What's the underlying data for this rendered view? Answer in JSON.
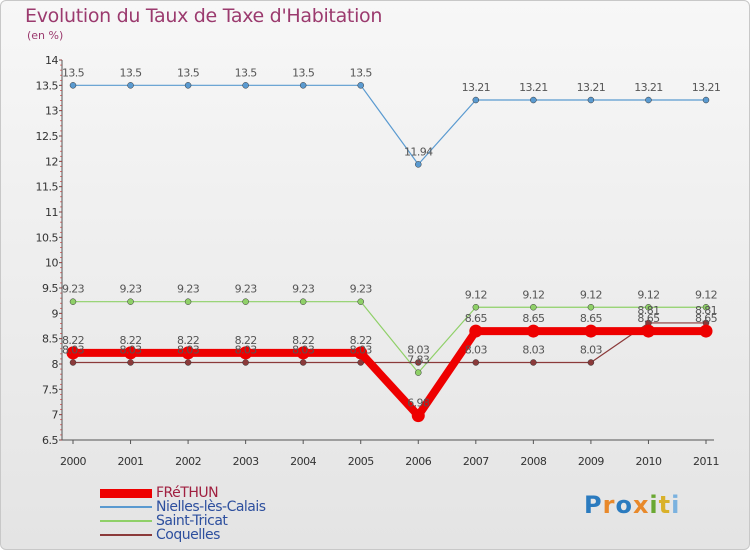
{
  "title": "Evolution du Taux de Taxe d'Habitation",
  "subtitle": "(en %)",
  "logo": {
    "text": "Proxiti",
    "letter_colors": [
      "#2b7bbf",
      "#e8892b",
      "#2b7bbf",
      "#e8892b",
      "#6aa832",
      "#d9b12a",
      "#7bb2df"
    ]
  },
  "chart_data": {
    "type": "line",
    "title": "Evolution du Taux de Taxe d'Habitation",
    "subtitle": "(en %)",
    "x": [
      "2000",
      "2001",
      "2002",
      "2003",
      "2004",
      "2005",
      "2006",
      "2007",
      "2008",
      "2009",
      "2010",
      "2011"
    ],
    "ylim": [
      6.5,
      14
    ],
    "yticks": [
      "6.5",
      "7",
      "7.5",
      "8",
      "8.5",
      "9",
      "9.5",
      "10",
      "10.5",
      "11",
      "11.5",
      "12",
      "12.5",
      "13",
      "13.5",
      "14"
    ],
    "grid": false,
    "legend_position": "bottom-left",
    "series": [
      {
        "name": "FRéTHUN",
        "color": "#ee0000",
        "emphasis": true,
        "values": [
          8.22,
          8.22,
          8.22,
          8.22,
          8.22,
          8.22,
          6.98,
          8.65,
          8.65,
          8.65,
          8.65,
          8.65
        ],
        "labels": [
          "8.22",
          "8.22",
          "8.22",
          "8.22",
          "8.22",
          "8.22",
          "6.98",
          "8.65",
          "8.65",
          "8.65",
          "8.65",
          "8.65"
        ]
      },
      {
        "name": "Nielles-lès-Calais",
        "color": "#5a9ad0",
        "values": [
          13.5,
          13.5,
          13.5,
          13.5,
          13.5,
          13.5,
          11.94,
          13.21,
          13.21,
          13.21,
          13.21,
          13.21
        ],
        "labels": [
          "13.5",
          "13.5",
          "13.5",
          "13.5",
          "13.5",
          "13.5",
          "11.94",
          "13.21",
          "13.21",
          "13.21",
          "13.21",
          "13.21"
        ]
      },
      {
        "name": "Saint-Tricat",
        "color": "#8fd068",
        "values": [
          9.23,
          9.23,
          9.23,
          9.23,
          9.23,
          9.23,
          7.83,
          9.12,
          9.12,
          9.12,
          9.12,
          9.12
        ],
        "labels": [
          "9.23",
          "9.23",
          "9.23",
          "9.23",
          "9.23",
          "9.23",
          "7.83",
          "9.12",
          "9.12",
          "9.12",
          "9.12",
          "9.12"
        ]
      },
      {
        "name": "Coquelles",
        "color": "#8b3a3a",
        "values": [
          8.03,
          8.03,
          8.03,
          8.03,
          8.03,
          8.03,
          8.03,
          8.03,
          8.03,
          8.03,
          8.81,
          8.81
        ],
        "labels": [
          "8.03",
          "8.03",
          "8.03",
          "8.03",
          "8.03",
          "8.03",
          "8.03",
          "8.03",
          "8.03",
          "8.03",
          "8.81",
          "8.81"
        ]
      }
    ]
  }
}
